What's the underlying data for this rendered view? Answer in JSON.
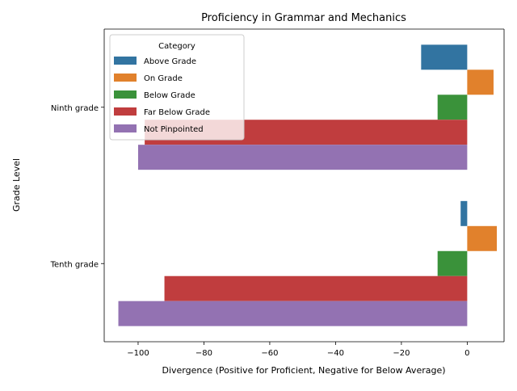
{
  "chart_data": {
    "type": "bar",
    "orientation": "horizontal",
    "title": "Proficiency in Grammar and Mechanics",
    "xlabel": "Divergence (Positive for Proficient, Negative for Below Average)",
    "ylabel": "Grade Level",
    "xlim": [
      -110.3,
      11.2
    ],
    "xticks": [
      -100,
      -80,
      -60,
      -40,
      -20,
      0
    ],
    "xtick_labels": [
      "−100",
      "−80",
      "−60",
      "−40",
      "−20",
      "0"
    ],
    "categories": [
      "Ninth grade",
      "Tenth grade"
    ],
    "legend": {
      "title": "Category",
      "placement": "top-left"
    },
    "grid": false,
    "series": [
      {
        "name": "Above Grade",
        "color": "#3274a1",
        "values": [
          -14,
          -2
        ]
      },
      {
        "name": "On Grade",
        "color": "#e1812c",
        "values": [
          8,
          9
        ]
      },
      {
        "name": "Below Grade",
        "color": "#3a923a",
        "values": [
          -9,
          -9
        ]
      },
      {
        "name": "Far Below Grade",
        "color": "#c03d3e",
        "values": [
          -98,
          -92
        ]
      },
      {
        "name": "Not Pinpointed",
        "color": "#9372b2",
        "values": [
          -100,
          -106
        ]
      }
    ]
  }
}
